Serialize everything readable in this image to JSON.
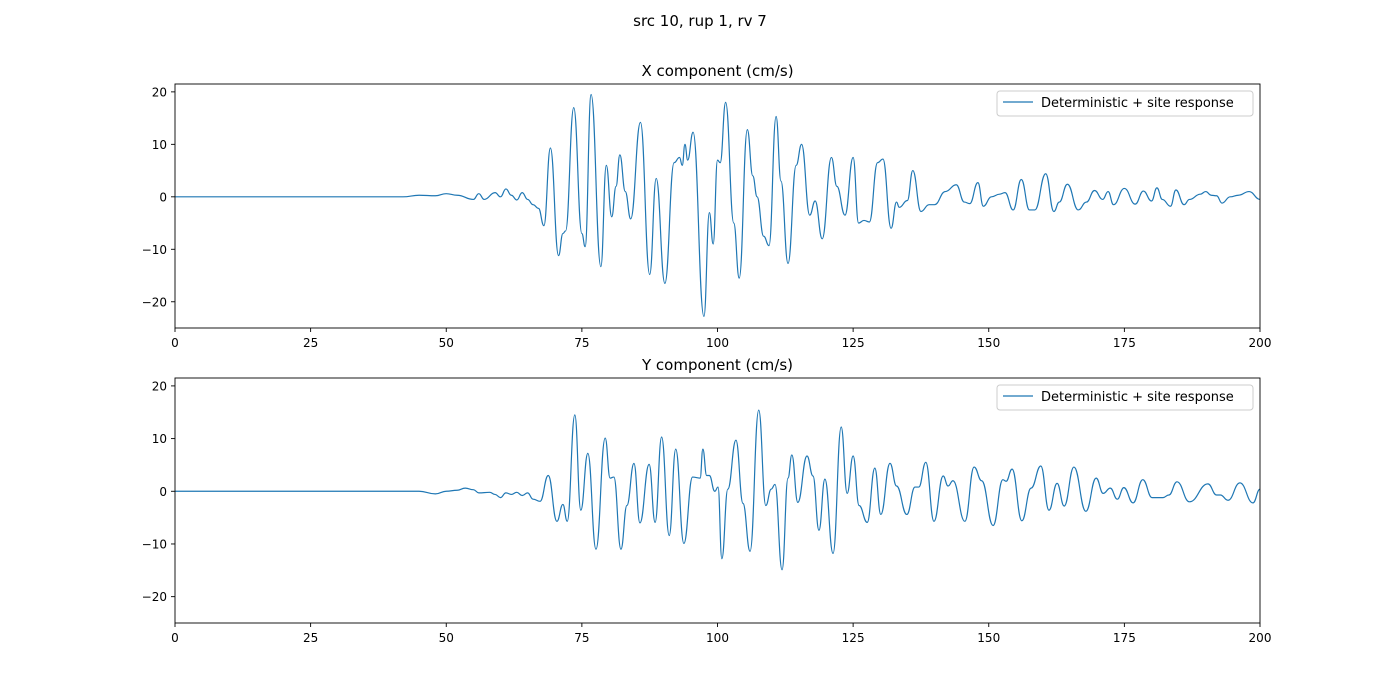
{
  "chart_data": {
    "suptitle": "src 10, rup 1, rv 7",
    "line_color": "#1f77b4",
    "panels": [
      {
        "type": "line",
        "title": "X component (cm/s)",
        "xlim": [
          0,
          200
        ],
        "ylim": [
          -25,
          21.5
        ],
        "xticks": [
          0,
          25,
          50,
          75,
          100,
          125,
          150,
          175,
          200
        ],
        "yticks": [
          20,
          10,
          0,
          -10,
          -20
        ],
        "grid": false,
        "legend": {
          "placement": "top-right",
          "entries": [
            "Deterministic + site response"
          ]
        },
        "series": [
          {
            "name": "Deterministic + site response",
            "points": [
              [
                0,
                0
              ],
              [
                42,
                0
              ],
              [
                45,
                0.3
              ],
              [
                48,
                0.2
              ],
              [
                50,
                0.6
              ],
              [
                52,
                0.3
              ],
              [
                55,
                -0.5
              ],
              [
                56,
                0.6
              ],
              [
                57,
                -0.5
              ],
              [
                59,
                0.8
              ],
              [
                60,
                0
              ],
              [
                61,
                1.5
              ],
              [
                62,
                0.3
              ],
              [
                63,
                -0.6
              ],
              [
                64,
                0.8
              ],
              [
                65,
                -0.5
              ],
              [
                66,
                -1.5
              ],
              [
                67,
                -2.2
              ],
              [
                68,
                -5.5
              ],
              [
                69.2,
                9.3
              ],
              [
                70.7,
                -11.2
              ],
              [
                71.5,
                -7
              ],
              [
                72,
                -6.5
              ],
              [
                73.5,
                17
              ],
              [
                75,
                -7
              ],
              [
                75.6,
                -9.5
              ],
              [
                76.7,
                19.5
              ],
              [
                78.5,
                -13.3
              ],
              [
                79.5,
                6
              ],
              [
                80.5,
                -3.8
              ],
              [
                81.3,
                2
              ],
              [
                82,
                8
              ],
              [
                83,
                1
              ],
              [
                84,
                -4.2
              ],
              [
                85.8,
                14.2
              ],
              [
                87.5,
                -14.8
              ],
              [
                88.7,
                3.5
              ],
              [
                90.3,
                -16.5
              ],
              [
                92,
                6.5
              ],
              [
                93,
                7.5
              ],
              [
                93.5,
                6
              ],
              [
                94,
                10
              ],
              [
                94.5,
                7
              ],
              [
                95.5,
                12.3
              ],
              [
                97.5,
                -22.8
              ],
              [
                98.5,
                -3
              ],
              [
                99.2,
                -9
              ],
              [
                100,
                7
              ],
              [
                100.5,
                6.5
              ],
              [
                101.5,
                18
              ],
              [
                103,
                -5
              ],
              [
                104,
                -15.5
              ],
              [
                105.5,
                12.8
              ],
              [
                106.5,
                4
              ],
              [
                107.3,
                0
              ],
              [
                108.5,
                -7.5
              ],
              [
                109.5,
                -9.3
              ],
              [
                110.8,
                15.3
              ],
              [
                111.7,
                3
              ],
              [
                113,
                -12.7
              ],
              [
                114.5,
                6
              ],
              [
                115.5,
                10
              ],
              [
                117,
                -3.5
              ],
              [
                118,
                -0.8
              ],
              [
                119.3,
                -8
              ],
              [
                121,
                7.5
              ],
              [
                122,
                2
              ],
              [
                123.5,
                -3.5
              ],
              [
                125,
                7.5
              ],
              [
                126,
                -5
              ],
              [
                127,
                -4.5
              ],
              [
                128,
                -4.8
              ],
              [
                129.5,
                6.5
              ],
              [
                130.5,
                7.2
              ],
              [
                132,
                -6
              ],
              [
                133,
                -1
              ],
              [
                133.5,
                -2
              ],
              [
                135,
                -0.7
              ],
              [
                136,
                5
              ],
              [
                137.5,
                -2.8
              ],
              [
                139,
                -1.5
              ],
              [
                140,
                -1.5
              ],
              [
                142,
                1
              ],
              [
                144,
                2.3
              ],
              [
                145.5,
                -1
              ],
              [
                146.5,
                -1.3
              ],
              [
                148,
                2.7
              ],
              [
                149,
                -1.8
              ],
              [
                150.5,
                0
              ],
              [
                152,
                0.5
              ],
              [
                153,
                0.8
              ],
              [
                154.5,
                -2.5
              ],
              [
                156,
                3.3
              ],
              [
                157.5,
                -2.5
              ],
              [
                158.5,
                -2.5
              ],
              [
                160.5,
                4.4
              ],
              [
                162,
                -2.8
              ],
              [
                163,
                -1
              ],
              [
                164.5,
                2.4
              ],
              [
                166.5,
                -2.5
              ],
              [
                168,
                -1
              ],
              [
                169.5,
                1.2
              ],
              [
                171,
                -0.5
              ],
              [
                172,
                1
              ],
              [
                173,
                -1.5
              ],
              [
                175,
                1.6
              ],
              [
                177,
                -1.4
              ],
              [
                178.5,
                1.1
              ],
              [
                180,
                -0.8
              ],
              [
                181,
                1.7
              ],
              [
                182,
                -0.5
              ],
              [
                183.5,
                -1.8
              ],
              [
                184.5,
                1.3
              ],
              [
                186,
                -1.5
              ],
              [
                187,
                -0.5
              ],
              [
                189,
                0.5
              ],
              [
                190,
                1
              ],
              [
                191,
                0.3
              ],
              [
                192,
                0.2
              ],
              [
                193,
                -1.2
              ],
              [
                194.5,
                0
              ],
              [
                196,
                0.3
              ],
              [
                198,
                1
              ],
              [
                200,
                -0.5
              ]
            ]
          }
        ]
      },
      {
        "type": "line",
        "title": "Y component (cm/s)",
        "xlim": [
          0,
          200
        ],
        "ylim": [
          -25,
          21.5
        ],
        "xticks": [
          0,
          25,
          50,
          75,
          100,
          125,
          150,
          175,
          200
        ],
        "yticks": [
          20,
          10,
          0,
          -10,
          -20
        ],
        "grid": false,
        "legend": {
          "placement": "top-right",
          "entries": [
            "Deterministic + site response"
          ]
        },
        "series": [
          {
            "name": "Deterministic + site response",
            "points": [
              [
                0,
                0
              ],
              [
                45,
                0
              ],
              [
                48,
                -0.5
              ],
              [
                50,
                0
              ],
              [
                52,
                0.2
              ],
              [
                53.5,
                0.6
              ],
              [
                55,
                0.3
              ],
              [
                56,
                -0.3
              ],
              [
                58,
                -0.2
              ],
              [
                59,
                -0.6
              ],
              [
                60,
                -1.2
              ],
              [
                61,
                -0.3
              ],
              [
                62,
                -0.6
              ],
              [
                63,
                -0.2
              ],
              [
                64,
                -0.8
              ],
              [
                65,
                -0.3
              ],
              [
                66,
                -1.5
              ],
              [
                67.3,
                -1.9
              ],
              [
                68.8,
                3
              ],
              [
                70.4,
                -5.7
              ],
              [
                71.5,
                -2.5
              ],
              [
                72.3,
                -5.7
              ],
              [
                73.7,
                14.5
              ],
              [
                74.8,
                -3.6
              ],
              [
                76.1,
                7.2
              ],
              [
                77.6,
                -11
              ],
              [
                79.3,
                10.1
              ],
              [
                80.2,
                2.5
              ],
              [
                80.9,
                2.7
              ],
              [
                82.2,
                -11
              ],
              [
                83.3,
                -2.7
              ],
              [
                84.6,
                5.3
              ],
              [
                85.7,
                -6
              ],
              [
                87.4,
                5.1
              ],
              [
                88.5,
                -5.9
              ],
              [
                89.7,
                10.3
              ],
              [
                91.1,
                -8.4
              ],
              [
                92.3,
                8
              ],
              [
                93.8,
                -9.9
              ],
              [
                95.4,
                2.7
              ],
              [
                96.8,
                2.5
              ],
              [
                97.3,
                8
              ],
              [
                98,
                3
              ],
              [
                98.5,
                3
              ],
              [
                99.5,
                0
              ],
              [
                100.1,
                0.8
              ],
              [
                100.8,
                -12.8
              ],
              [
                101.9,
                0.4
              ],
              [
                103.4,
                9.7
              ],
              [
                104.7,
                -2.3
              ],
              [
                106,
                -11.4
              ],
              [
                107.6,
                15.4
              ],
              [
                108.9,
                -2.7
              ],
              [
                109.9,
                0.4
              ],
              [
                110.6,
                1.3
              ],
              [
                111.9,
                -14.9
              ],
              [
                113,
                2.5
              ],
              [
                113.7,
                6.9
              ],
              [
                114.8,
                -2.1
              ],
              [
                116.5,
                6.7
              ],
              [
                117.6,
                2.9
              ],
              [
                118.7,
                -7.4
              ],
              [
                119.8,
                2.3
              ],
              [
                121.3,
                -11.8
              ],
              [
                122.8,
                12.2
              ],
              [
                123.9,
                -0.4
              ],
              [
                125,
                6.7
              ],
              [
                126.1,
                -2.7
              ],
              [
                127.6,
                -5.9
              ],
              [
                129,
                4.4
              ],
              [
                130.1,
                -4.4
              ],
              [
                131.8,
                5.3
              ],
              [
                133,
                1
              ],
              [
                134.9,
                -4.4
              ],
              [
                136.4,
                0.8
              ],
              [
                137.1,
                0.8
              ],
              [
                138.4,
                5.5
              ],
              [
                139.9,
                -5.7
              ],
              [
                141.6,
                2.9
              ],
              [
                142.5,
                1
              ],
              [
                143.4,
                2
              ],
              [
                145.6,
                -5.7
              ],
              [
                147.3,
                4.6
              ],
              [
                148.7,
                2
              ],
              [
                150.8,
                -6.5
              ],
              [
                152.6,
                2.2
              ],
              [
                153.2,
                1.9
              ],
              [
                154.3,
                4.2
              ],
              [
                156.1,
                -5.6
              ],
              [
                157.8,
                0.6
              ],
              [
                159.6,
                4.8
              ],
              [
                161.1,
                -3.6
              ],
              [
                162.6,
                1.5
              ],
              [
                163.9,
                -2.8
              ],
              [
                165.7,
                4.6
              ],
              [
                167.9,
                -3.8
              ],
              [
                169.8,
                2.5
              ],
              [
                171.1,
                -0.4
              ],
              [
                172.4,
                0.6
              ],
              [
                173.7,
                -1.5
              ],
              [
                174.9,
                0.7
              ],
              [
                176.6,
                -2.2
              ],
              [
                178.4,
                2.2
              ],
              [
                180.1,
                -1.2
              ],
              [
                182.1,
                -1.2
              ],
              [
                183.2,
                -0.7
              ],
              [
                184.7,
                1.8
              ],
              [
                187,
                -2
              ],
              [
                190.4,
                1.4
              ],
              [
                192,
                -0.7
              ],
              [
                192.7,
                -0.7
              ],
              [
                194.1,
                -1.7
              ],
              [
                196.3,
                1.6
              ],
              [
                198.7,
                -2.2
              ],
              [
                200,
                0.4
              ]
            ]
          }
        ]
      }
    ]
  }
}
